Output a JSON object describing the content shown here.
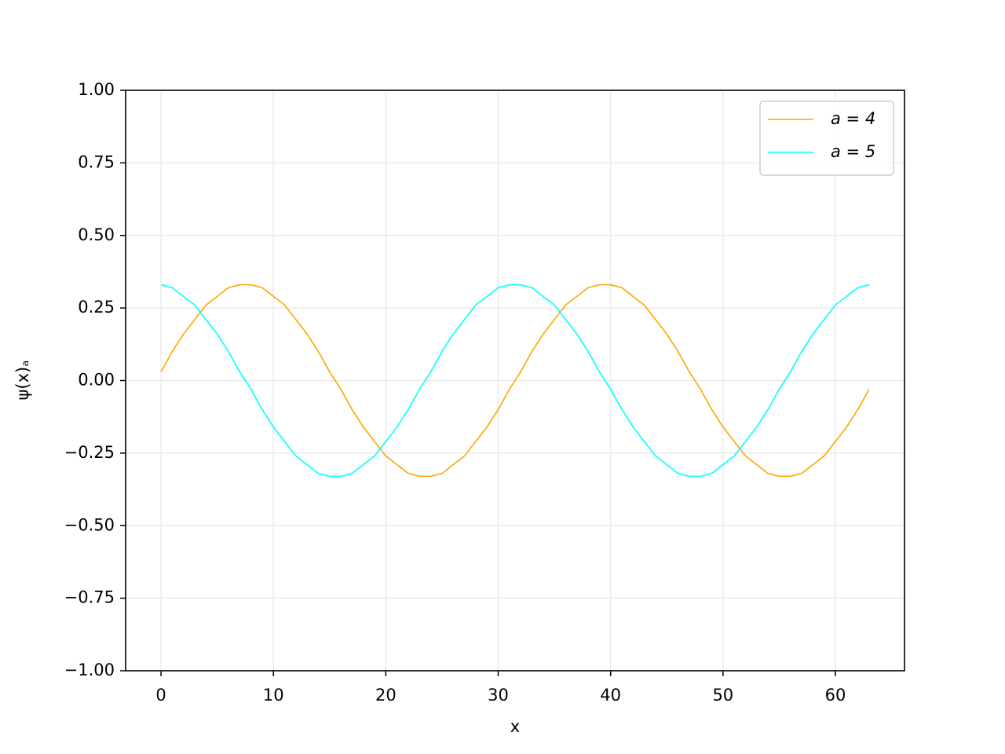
{
  "chart_data": {
    "type": "line",
    "x_label": "x",
    "y_label": "ψ(x)ₐ",
    "x": [
      0,
      1,
      2,
      3,
      4,
      5,
      6,
      7,
      8,
      9,
      10,
      11,
      12,
      13,
      14,
      15,
      16,
      17,
      18,
      19,
      20,
      21,
      22,
      23,
      24,
      25,
      26,
      27,
      28,
      29,
      30,
      31,
      32,
      33,
      34,
      35,
      36,
      37,
      38,
      39,
      40,
      41,
      42,
      43,
      44,
      45,
      46,
      47,
      48,
      49,
      50,
      51,
      52,
      53,
      54,
      55,
      56,
      57,
      58,
      59,
      60,
      61,
      62,
      63
    ],
    "series": [
      {
        "name": "a = 4",
        "color": "#ffa500",
        "values": [
          0.03,
          0.1,
          0.16,
          0.21,
          0.26,
          0.29,
          0.32,
          0.33,
          0.33,
          0.32,
          0.29,
          0.26,
          0.21,
          0.16,
          0.1,
          0.03,
          -0.03,
          -0.1,
          -0.16,
          -0.21,
          -0.26,
          -0.29,
          -0.32,
          -0.33,
          -0.33,
          -0.32,
          -0.29,
          -0.26,
          -0.21,
          -0.16,
          -0.1,
          -0.03,
          0.03,
          0.1,
          0.16,
          0.21,
          0.26,
          0.29,
          0.32,
          0.33,
          0.33,
          0.32,
          0.29,
          0.26,
          0.21,
          0.16,
          0.1,
          0.03,
          -0.03,
          -0.1,
          -0.16,
          -0.21,
          -0.26,
          -0.29,
          -0.32,
          -0.33,
          -0.33,
          -0.32,
          -0.29,
          -0.26,
          -0.21,
          -0.16,
          -0.1,
          -0.03
        ]
      },
      {
        "name": "a = 5",
        "color": "#00ffff",
        "values": [
          0.33,
          0.32,
          0.29,
          0.26,
          0.21,
          0.16,
          0.1,
          0.03,
          -0.03,
          -0.1,
          -0.16,
          -0.21,
          -0.26,
          -0.29,
          -0.32,
          -0.33,
          -0.33,
          -0.32,
          -0.29,
          -0.26,
          -0.21,
          -0.16,
          -0.1,
          -0.03,
          0.03,
          0.1,
          0.16,
          0.21,
          0.26,
          0.29,
          0.32,
          0.33,
          0.33,
          0.32,
          0.29,
          0.26,
          0.21,
          0.16,
          0.1,
          0.03,
          -0.03,
          -0.1,
          -0.16,
          -0.21,
          -0.26,
          -0.29,
          -0.32,
          -0.33,
          -0.33,
          -0.32,
          -0.29,
          -0.26,
          -0.21,
          -0.16,
          -0.1,
          -0.03,
          0.03,
          0.1,
          0.16,
          0.21,
          0.26,
          0.29,
          0.32,
          0.33
        ]
      }
    ],
    "xlim": [
      -3.15,
      66.15
    ],
    "ylim": [
      -1,
      1
    ],
    "xticks": [
      0,
      10,
      20,
      30,
      40,
      50,
      60
    ],
    "yticks": [
      {
        "value": -1,
        "label": "−1.00"
      },
      {
        "value": -0.75,
        "label": "−0.75"
      },
      {
        "value": -0.5,
        "label": "−0.50"
      },
      {
        "value": -0.25,
        "label": "−0.25"
      },
      {
        "value": 0,
        "label": "0.00"
      },
      {
        "value": 0.25,
        "label": "0.25"
      },
      {
        "value": 0.5,
        "label": "0.50"
      },
      {
        "value": 0.75,
        "label": "0.75"
      },
      {
        "value": 1,
        "label": "1.00"
      }
    ],
    "grid": true,
    "legend": "upper right"
  }
}
